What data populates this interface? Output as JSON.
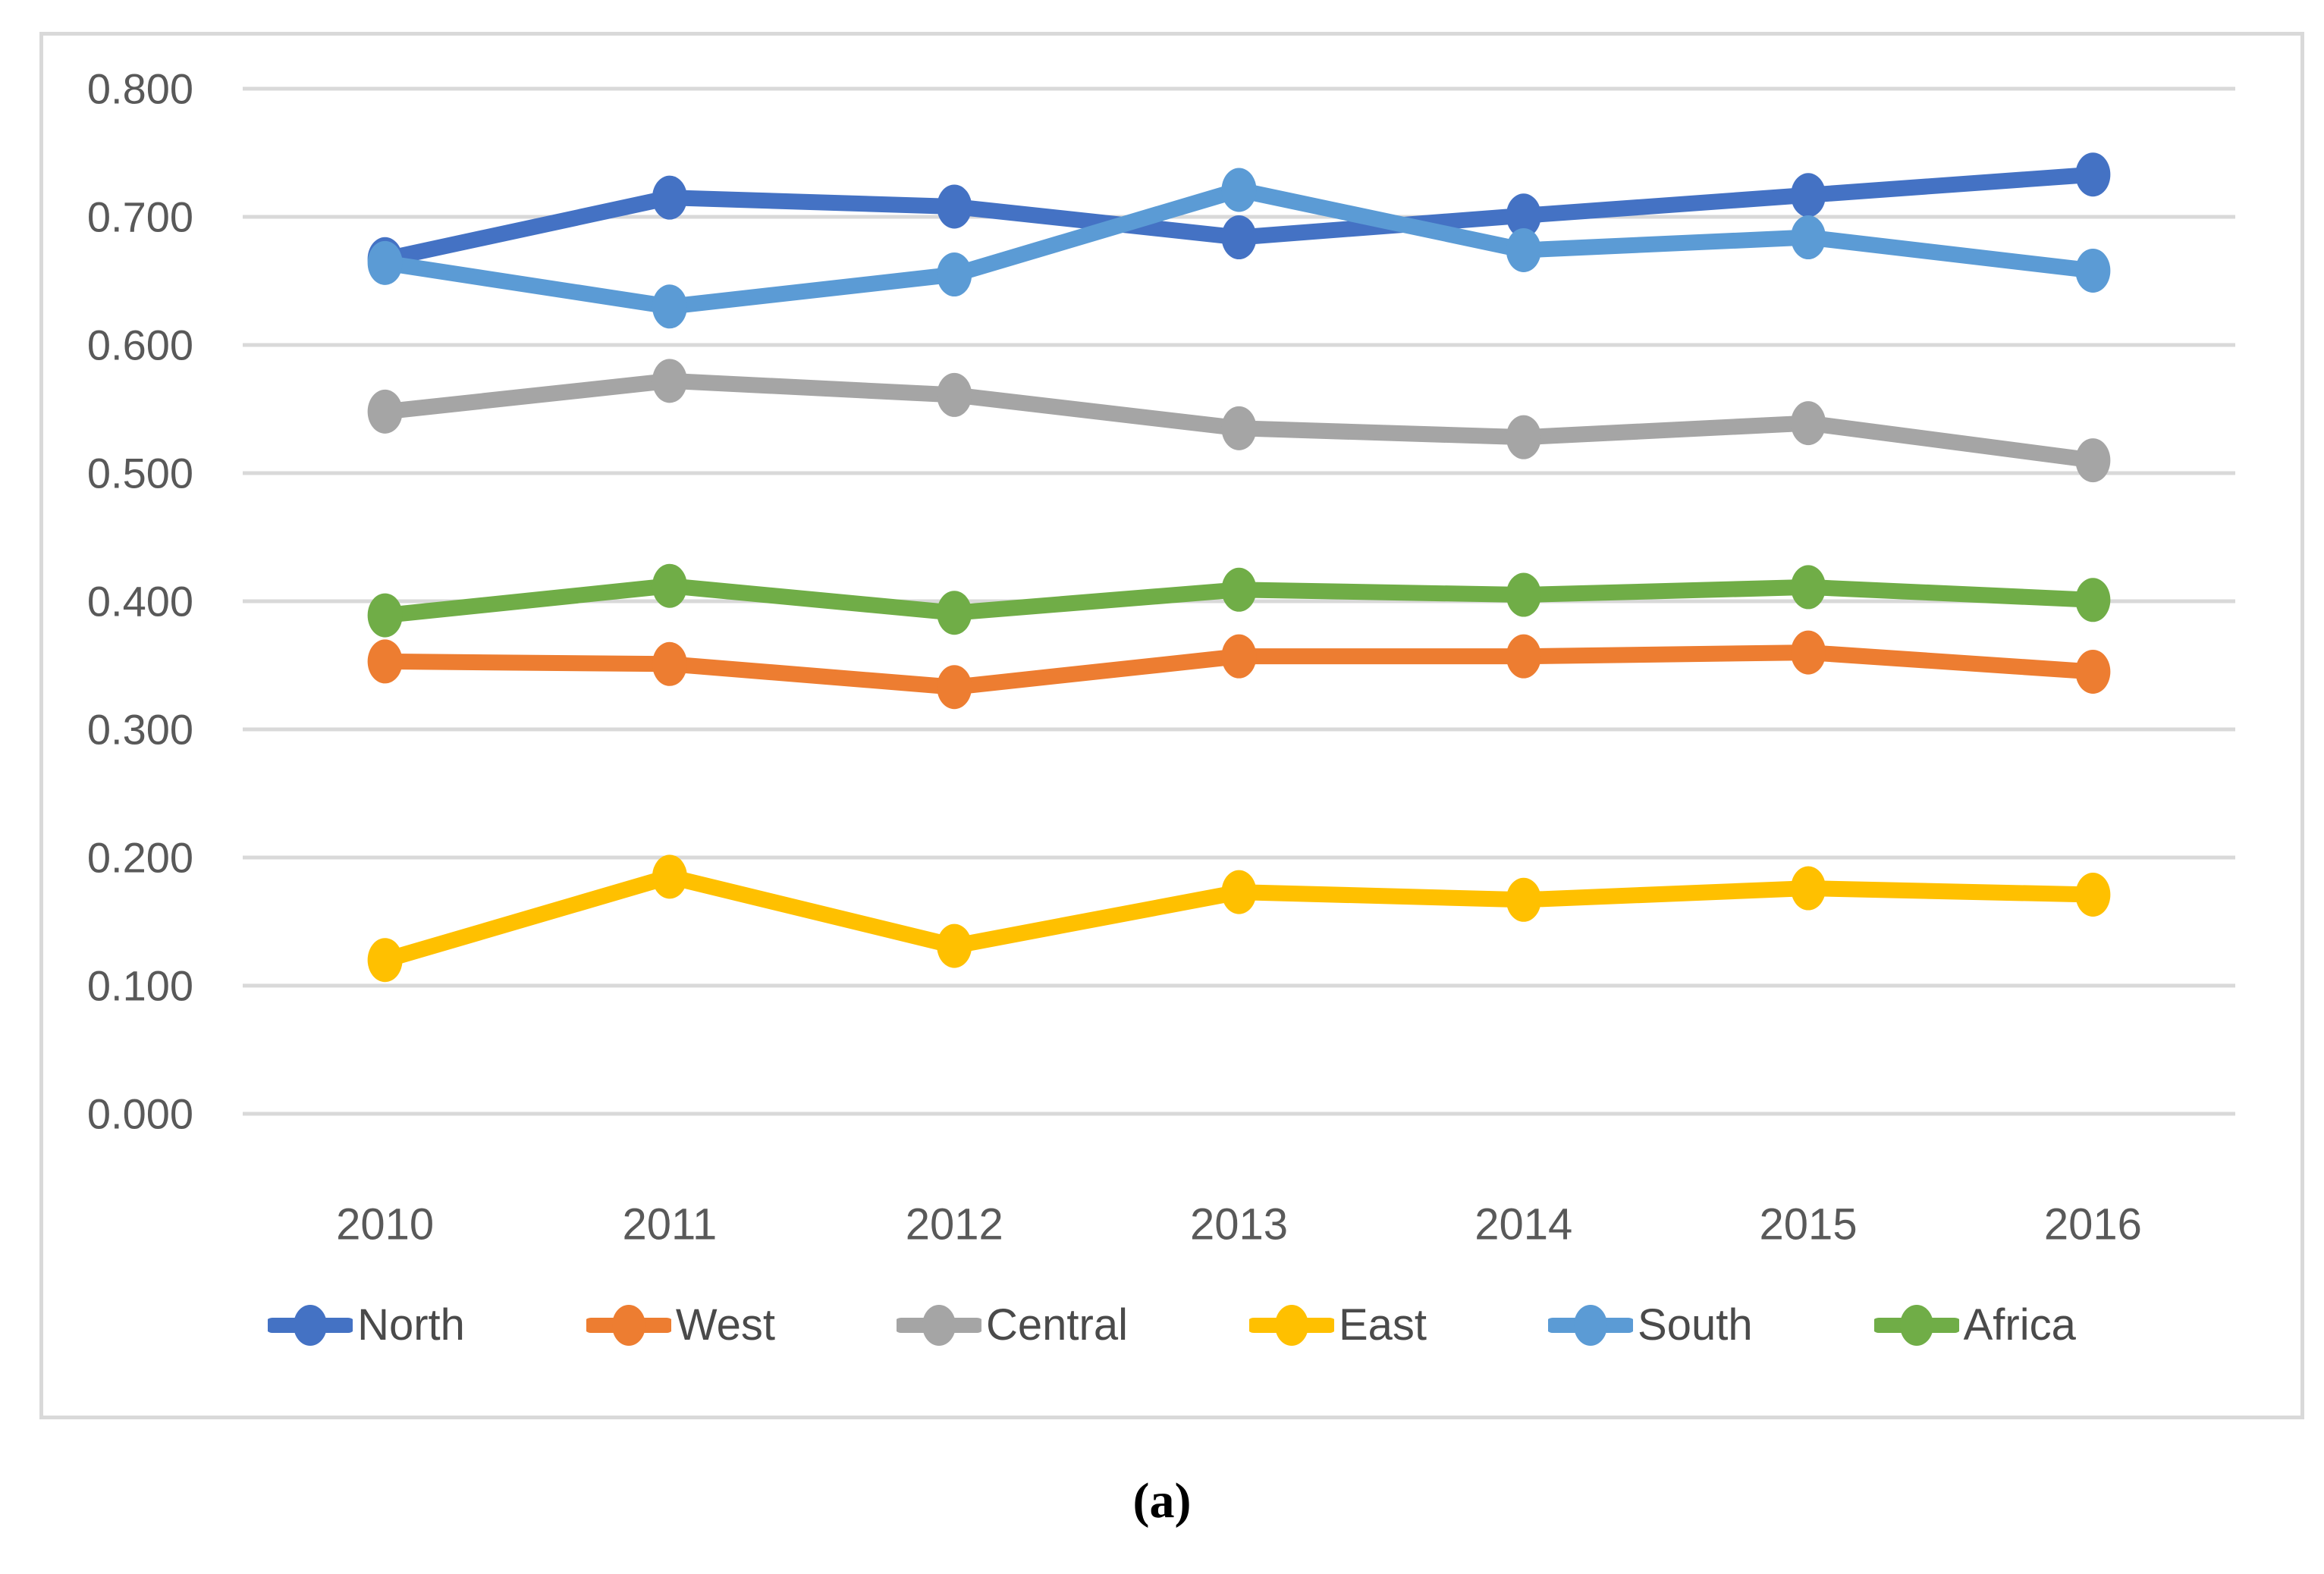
{
  "figure": {
    "caption": "(a)"
  },
  "colors": {
    "background": "#FFFFFF",
    "frame_border": "#D9D9D9",
    "gridline": "#D9D9D9",
    "axis_text": "#595959",
    "legend_text": "#4A4A4A"
  },
  "chart_data": {
    "type": "line",
    "title": "",
    "xlabel": "",
    "ylabel": "",
    "grid": true,
    "legend_position": "bottom",
    "ylim": [
      0.0,
      0.8
    ],
    "ytick_step": 0.1,
    "ytick_labels": [
      "0.000",
      "0.100",
      "0.200",
      "0.300",
      "0.400",
      "0.500",
      "0.600",
      "0.700",
      "0.800"
    ],
    "categories": [
      "2010",
      "2011",
      "2012",
      "2013",
      "2014",
      "2015",
      "2016"
    ],
    "series": [
      {
        "name": "North",
        "color": "#4472C4",
        "values": [
          0.667,
          0.715,
          0.708,
          0.684,
          0.701,
          0.717,
          0.733
        ]
      },
      {
        "name": "West",
        "color": "#ED7D31",
        "values": [
          0.353,
          0.351,
          0.333,
          0.357,
          0.357,
          0.36,
          0.345
        ]
      },
      {
        "name": "Central",
        "color": "#A5A5A5",
        "values": [
          0.548,
          0.572,
          0.561,
          0.535,
          0.528,
          0.539,
          0.51
        ]
      },
      {
        "name": "East",
        "color": "#FFC000",
        "values": [
          0.12,
          0.185,
          0.131,
          0.173,
          0.167,
          0.176,
          0.171
        ]
      },
      {
        "name": "South",
        "color": "#5B9BD5",
        "values": [
          0.664,
          0.63,
          0.655,
          0.721,
          0.674,
          0.684,
          0.658
        ]
      },
      {
        "name": "Africa",
        "color": "#70AD47",
        "values": [
          0.389,
          0.412,
          0.391,
          0.409,
          0.405,
          0.411,
          0.401
        ]
      }
    ]
  }
}
